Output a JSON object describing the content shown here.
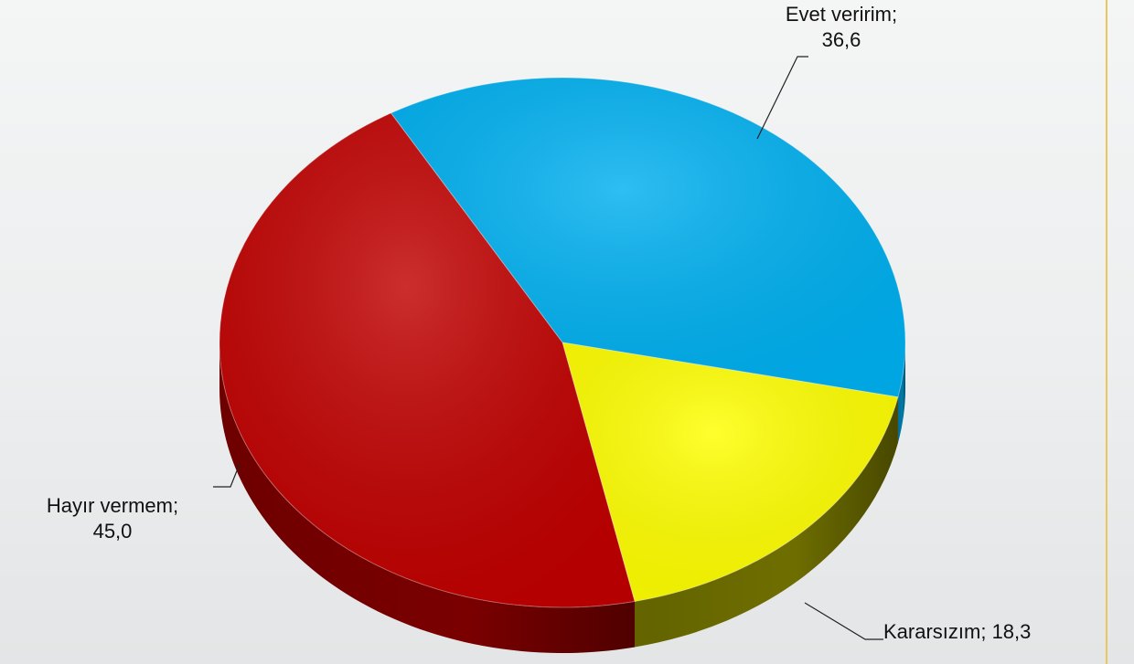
{
  "chart_data": {
    "type": "pie",
    "title": "",
    "is_3d": true,
    "slices": [
      {
        "label": "Evet veririm",
        "value": 36.6,
        "display_value": "36,6",
        "color": "#00b0f0",
        "side_color": "#007aa8"
      },
      {
        "label": "Kararsızım",
        "value": 18.3,
        "display_value": "18,3",
        "color": "#ffff00",
        "side_color": "#6e6e00"
      },
      {
        "label": "Hayır vermem",
        "value": 45.0,
        "display_value": "45,0",
        "color": "#c00000",
        "side_color": "#7a0000"
      }
    ],
    "legend": "none",
    "data_labels": "outside-with-leader-lines"
  },
  "labels": {
    "evet_line1": "Evet veririm;",
    "evet_line2": "36,6",
    "hayir_line1": "Hayır vermem;",
    "hayir_line2": "45,0",
    "kararsiz": "Kararsızım; 18,3"
  }
}
